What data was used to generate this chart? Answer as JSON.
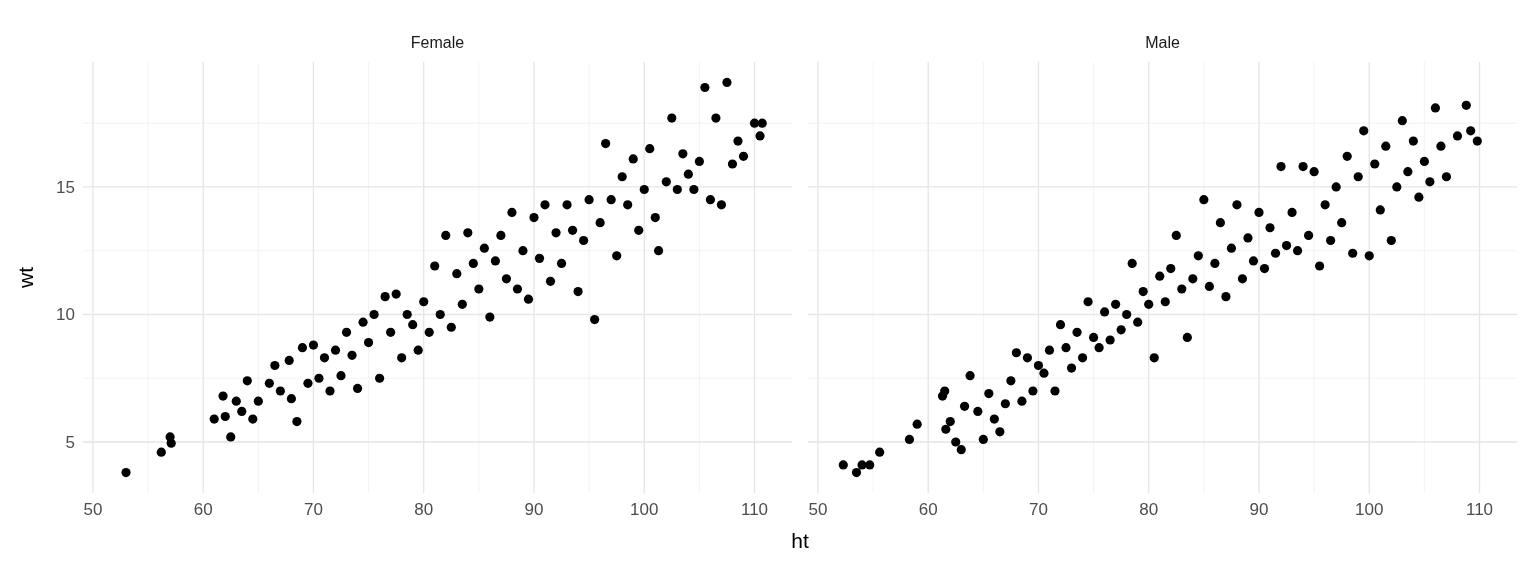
{
  "chart_data": [
    {
      "type": "scatter",
      "title": "Female",
      "xlabel": "ht",
      "ylabel": "wt",
      "xlim": [
        49.1,
        113.4
      ],
      "ylim": [
        3.0,
        19.9
      ],
      "xticks": [
        50,
        60,
        70,
        80,
        90,
        100,
        110
      ],
      "yticks": [
        5,
        10,
        15
      ],
      "grid": true,
      "marker": "circle",
      "series": [
        {
          "color": "#000000",
          "x": [
            53,
            56.2,
            57,
            57.1,
            61,
            61.8,
            62,
            62.5,
            63,
            63.5,
            64,
            64.5,
            65,
            66,
            66.5,
            67,
            67.8,
            68,
            68.5,
            69,
            69.5,
            70,
            70.5,
            71,
            71.5,
            72,
            72.5,
            73,
            73.5,
            74,
            74.5,
            75,
            75.5,
            76,
            76.5,
            77,
            77.5,
            78,
            78.5,
            79,
            79.5,
            80,
            80.5,
            81,
            81.5,
            82,
            82.5,
            83,
            83.5,
            84,
            84.5,
            85,
            85.5,
            86,
            86.5,
            87,
            87.5,
            88,
            88.5,
            89,
            89.5,
            90,
            90.5,
            91,
            91.5,
            92,
            92.5,
            93,
            93.5,
            94,
            94.5,
            95,
            95.5,
            96,
            96.5,
            97,
            97.5,
            98,
            98.5,
            99,
            99.5,
            100,
            100.5,
            101,
            101.3,
            102,
            102.5,
            103,
            103.5,
            104,
            104.5,
            105,
            105.5,
            106,
            106.5,
            107,
            107.5,
            108,
            108.5,
            109,
            110,
            110.5,
            110.7
          ],
          "values": [
            3.8,
            4.6,
            5.2,
            4.95,
            5.9,
            6.8,
            6.0,
            5.2,
            6.6,
            6.2,
            7.4,
            5.9,
            6.6,
            7.3,
            8.0,
            7.0,
            8.2,
            6.7,
            5.8,
            8.7,
            7.3,
            8.8,
            7.5,
            8.3,
            7.0,
            8.6,
            7.6,
            9.3,
            8.4,
            7.1,
            9.7,
            8.9,
            10.0,
            7.5,
            10.7,
            9.3,
            10.8,
            8.3,
            10.0,
            9.6,
            8.6,
            10.5,
            9.3,
            11.9,
            10.0,
            13.1,
            9.5,
            11.6,
            10.4,
            13.2,
            12.0,
            11.0,
            12.6,
            9.9,
            12.1,
            13.1,
            11.4,
            14.0,
            11.0,
            12.5,
            10.6,
            13.8,
            12.2,
            14.3,
            11.3,
            13.2,
            12.0,
            14.3,
            13.3,
            10.9,
            12.9,
            14.5,
            9.8,
            13.6,
            16.7,
            14.5,
            12.3,
            15.4,
            14.3,
            16.1,
            13.3,
            14.9,
            16.5,
            13.8,
            12.5,
            15.2,
            17.7,
            14.9,
            16.3,
            15.5,
            14.9,
            16.0,
            18.9,
            14.5,
            17.7,
            14.3,
            19.1,
            15.9,
            16.8,
            16.2,
            17.5,
            17.0,
            17.5
          ]
        }
      ]
    },
    {
      "type": "scatter",
      "title": "Male",
      "xlim": [
        49.1,
        113.4
      ],
      "ylim": [
        3.0,
        19.9
      ],
      "xticks": [
        50,
        60,
        70,
        80,
        90,
        100,
        110
      ],
      "yticks": [
        5,
        10,
        15
      ],
      "grid": true,
      "marker": "circle",
      "tick_labels": "x",
      "series": [
        {
          "color": "#000000",
          "x": [
            52.3,
            53.5,
            54,
            54.7,
            55.6,
            58.3,
            59,
            61.3,
            61.5,
            61.6,
            62,
            62.5,
            63,
            63.3,
            63.8,
            64.5,
            65,
            65.5,
            66,
            66.5,
            67,
            67.5,
            68,
            68.5,
            69,
            69.5,
            70,
            70.5,
            71,
            71.5,
            72,
            72.5,
            73,
            73.5,
            74,
            74.5,
            75,
            75.5,
            76,
            76.5,
            77,
            77.5,
            78,
            78.5,
            79,
            79.5,
            80,
            80.5,
            81,
            81.5,
            82,
            82.5,
            83,
            83.5,
            84,
            84.5,
            85,
            85.5,
            86,
            86.5,
            87,
            87.5,
            88,
            88.5,
            89,
            89.5,
            90,
            90.5,
            91,
            91.5,
            92,
            92.5,
            93,
            93.5,
            94,
            94.5,
            95,
            95.5,
            96,
            96.5,
            97,
            97.5,
            98,
            98.5,
            99,
            99.5,
            100,
            100.5,
            101,
            101.5,
            102,
            102.5,
            103,
            103.5,
            104,
            104.5,
            105,
            105.5,
            106,
            106.5,
            107,
            108,
            108.8,
            109.2,
            109.8
          ],
          "values": [
            4.1,
            3.8,
            4.1,
            4.1,
            4.6,
            5.1,
            5.7,
            6.8,
            7.0,
            5.5,
            5.8,
            5.0,
            4.7,
            6.4,
            7.6,
            6.2,
            5.1,
            6.9,
            5.9,
            5.4,
            6.5,
            7.4,
            8.5,
            6.6,
            8.3,
            7.0,
            8.0,
            7.7,
            8.6,
            7.0,
            9.6,
            8.7,
            7.9,
            9.3,
            8.3,
            10.5,
            9.1,
            8.7,
            10.1,
            9.0,
            10.4,
            9.4,
            10.0,
            12.0,
            9.7,
            10.9,
            10.4,
            8.3,
            11.5,
            10.5,
            11.8,
            13.1,
            11.0,
            9.1,
            11.4,
            12.3,
            14.5,
            11.1,
            12.0,
            13.6,
            10.7,
            12.6,
            14.3,
            11.4,
            13.0,
            12.1,
            14.0,
            11.8,
            13.4,
            12.4,
            15.8,
            12.7,
            14.0,
            12.5,
            15.8,
            13.1,
            15.6,
            11.9,
            14.3,
            12.9,
            15.0,
            13.6,
            16.2,
            12.4,
            15.4,
            17.2,
            12.3,
            15.9,
            14.1,
            16.6,
            12.9,
            15.0,
            17.6,
            15.6,
            16.8,
            14.6,
            16.0,
            15.2,
            18.1,
            16.6,
            15.4,
            17.0,
            18.2,
            17.2,
            16.8
          ]
        }
      ]
    }
  ]
}
